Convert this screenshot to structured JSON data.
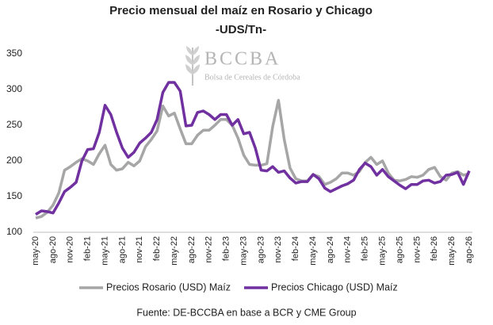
{
  "chart_data": {
    "type": "line",
    "title": "Precio mensual del maíz en Rosario y Chicago",
    "subtitle": "-UDS/Tn-",
    "watermark_title": "BCCBA",
    "watermark_subtitle": "Bolsa de Cereales de Córdoba",
    "source": "Fuente: DE-BCCBA en base a BCR y CME Group",
    "categories": [
      "may-20",
      null,
      null,
      "ago-20",
      null,
      null,
      "nov-20",
      null,
      null,
      "feb-21",
      null,
      null,
      "may-21",
      null,
      null,
      "ago-21",
      null,
      null,
      "nov-21",
      null,
      null,
      "feb-22",
      null,
      null,
      "may-22",
      null,
      null,
      "ago-22",
      null,
      null,
      "nov-22",
      null,
      null,
      "feb-23",
      null,
      null,
      "may-23",
      null,
      null,
      "ago-23",
      null,
      null,
      "nov-23",
      null,
      null,
      "feb-24",
      null,
      null,
      "may-24",
      null,
      null,
      "ago-24",
      null,
      null,
      "nov-24",
      null,
      null,
      "feb-25",
      null,
      null,
      "may-25",
      null,
      null,
      "ago-25",
      null,
      null,
      "nov-25",
      null,
      null,
      "feb-26",
      null,
      null,
      "may-26",
      null,
      null,
      "ago-26"
    ],
    "series": [
      {
        "name": "Precios Rosario (USD) Maíz",
        "color": "#a6a6a6",
        "values": [
          120,
          122,
          128,
          138,
          155,
          187,
          192,
          198,
          203,
          200,
          195,
          210,
          222,
          195,
          187,
          189,
          198,
          193,
          200,
          220,
          230,
          242,
          277,
          263,
          267,
          245,
          224,
          224,
          236,
          243,
          243,
          250,
          258,
          258,
          250,
          232,
          208,
          195,
          194,
          194,
          196,
          248,
          285,
          230,
          190,
          175,
          172,
          172,
          181,
          178,
          167,
          170,
          175,
          183,
          183,
          180,
          185,
          198,
          205,
          195,
          200,
          183,
          173,
          172,
          174,
          178,
          177,
          180,
          188,
          191,
          178,
          173,
          183,
          185,
          180,
          182
        ]
      },
      {
        "name": "Precios Chicago (USD) Maíz",
        "color": "#7030a0",
        "values": [
          125,
          130,
          129,
          127,
          141,
          157,
          163,
          170,
          200,
          216,
          217,
          240,
          278,
          265,
          240,
          218,
          205,
          212,
          225,
          232,
          240,
          258,
          296,
          310,
          310,
          298,
          249,
          250,
          268,
          270,
          265,
          258,
          265,
          265,
          250,
          258,
          238,
          240,
          218,
          187,
          186,
          192,
          184,
          186,
          176,
          169,
          171,
          171,
          181,
          175,
          162,
          157,
          161,
          165,
          168,
          173,
          188,
          197,
          192,
          180,
          188,
          178,
          172,
          166,
          161,
          167,
          167,
          172,
          173,
          169,
          171,
          180,
          181,
          184,
          167,
          186
        ]
      }
    ],
    "ylim": [
      100,
      350
    ],
    "yticks": [
      100,
      150,
      200,
      250,
      300,
      350
    ],
    "grid": false,
    "legend": "bottom"
  }
}
